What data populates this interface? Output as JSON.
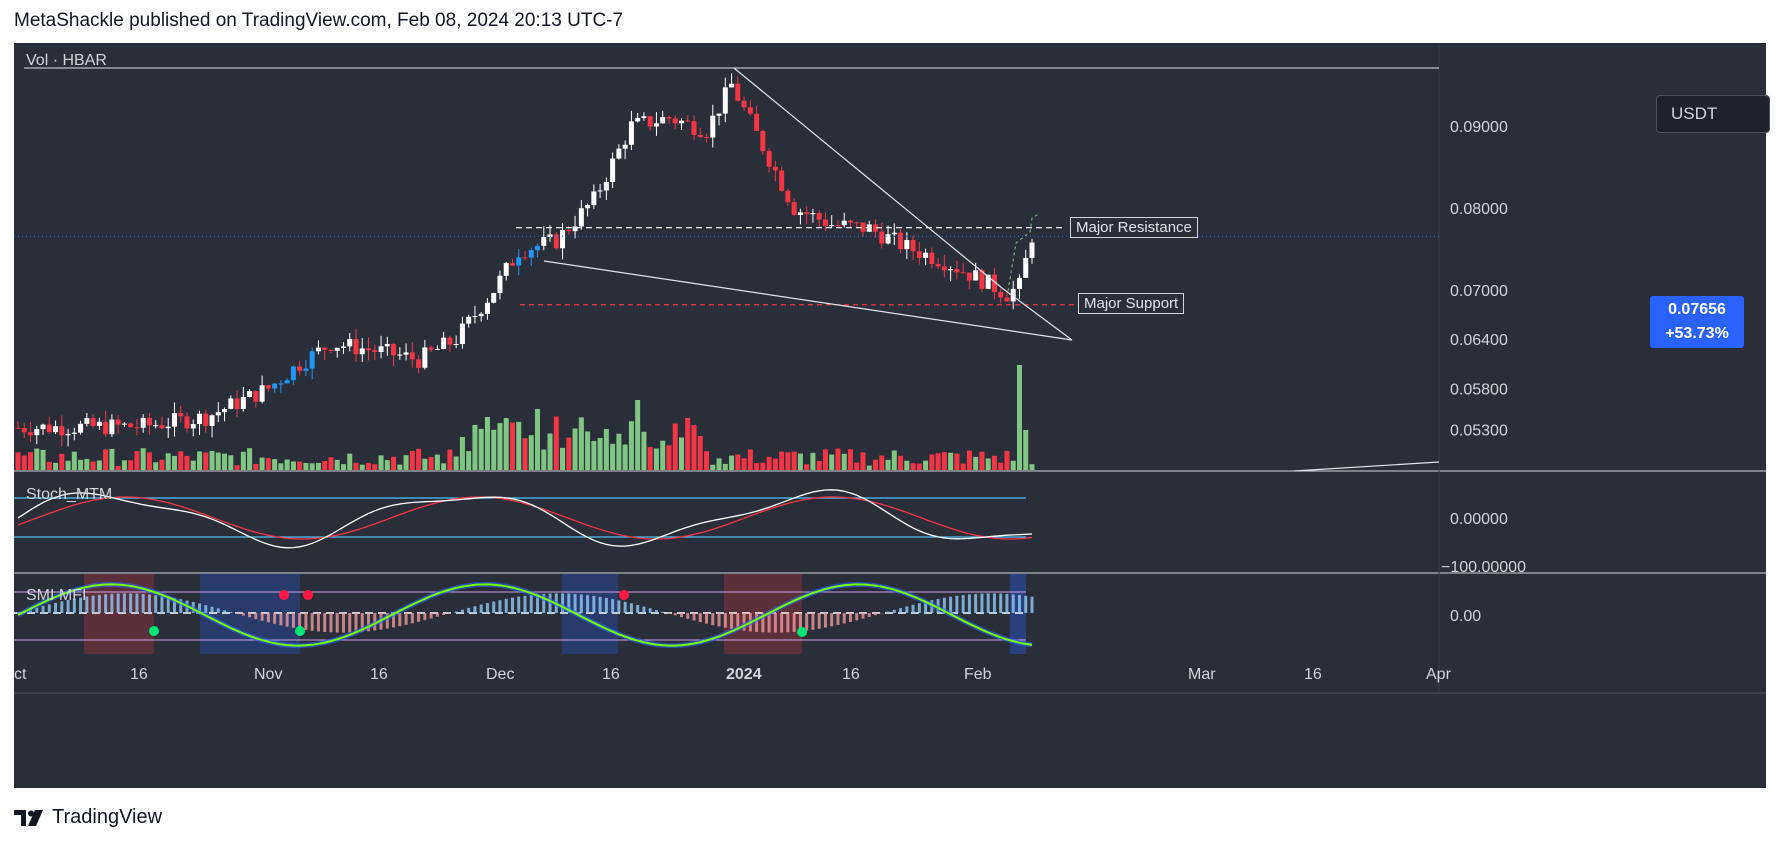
{
  "header": {
    "publish_line": "MetaShackle published on TradingView.com, Feb 08, 2024 20:13 UTC-7"
  },
  "footer": {
    "brand": "TradingView"
  },
  "pane_labels": {
    "main": "Vol · HBAR",
    "stoch": "Stoch_MTM",
    "smi": "SMI MFI"
  },
  "currency": "USDT",
  "price_tag": {
    "price": "0.07656",
    "change": "+53.73%"
  },
  "annotations": {
    "resistance": "Major Resistance",
    "support": "Major Support"
  },
  "price_axis": [
    "0.09000",
    "0.08000",
    "0.07000",
    "0.06400",
    "0.05800",
    "0.05300"
  ],
  "stoch_axis": [
    "0.00000",
    "−100.00000"
  ],
  "smi_axis": [
    "0.00"
  ],
  "time_axis": [
    "ct",
    "16",
    "Nov",
    "16",
    "Dec",
    "16",
    "2024",
    "16",
    "Feb",
    "Mar",
    "16",
    "Apr"
  ],
  "colors": {
    "background": "#2a2e39",
    "up": "#ffffff",
    "down": "#f23645",
    "up_blue": "#2196f3",
    "volume_up": "#81c784",
    "volume_down": "#f23645",
    "accent": "#2962ff"
  },
  "chart_data": {
    "type": "candlestick",
    "title": "Vol · HBAR",
    "quote_currency": "USDT",
    "last_price": 0.07656,
    "change_percent": 53.73,
    "x_range": [
      "2023-10-01",
      "2024-04-01"
    ],
    "y_ticks": [
      0.053,
      0.058,
      0.064,
      0.07,
      0.08,
      0.09
    ],
    "levels": {
      "major_resistance": 0.0776,
      "major_support": 0.0682
    },
    "key_points": [
      {
        "date": "2023-12-07",
        "price": 0.0748
      },
      {
        "date": "2023-12-16",
        "price": 0.08
      },
      {
        "date": "2024-01-02",
        "price": 0.0955
      },
      {
        "date": "2024-01-18",
        "price": 0.078
      },
      {
        "date": "2024-02-05",
        "price": 0.069
      },
      {
        "date": "2024-02-08",
        "price": 0.0766
      }
    ],
    "grid": false,
    "legend": "top-left"
  }
}
